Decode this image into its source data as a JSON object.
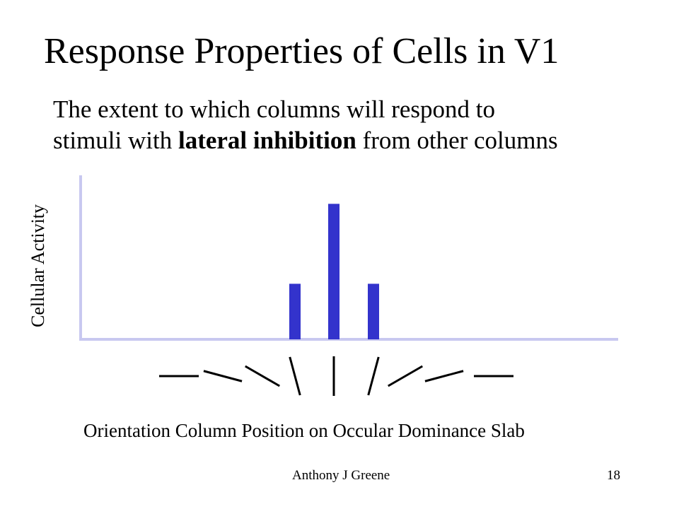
{
  "slide": {
    "title": "Response Properties of Cells in V1",
    "subtitle_pre": "The extent to which columns will respond to",
    "subtitle_line2_before": "stimuli with ",
    "subtitle_bold": "lateral inhibition",
    "subtitle_line2_after": " from other columns",
    "footer_author": "Anthony J Greene",
    "footer_page": "18"
  },
  "chart_data": {
    "type": "bar",
    "ylabel": "Cellular Activity",
    "xlabel": "Orientation Column Position on Occular Dominance Slab",
    "categories": [
      "0°",
      "15°",
      "30°",
      "75°",
      "90°",
      "105°",
      "150°",
      "165°",
      "180°"
    ],
    "orientations_deg": [
      0,
      15,
      30,
      75,
      90,
      105,
      150,
      165,
      180
    ],
    "values": [
      0,
      0,
      0,
      0.41,
      1.0,
      0.41,
      0,
      0,
      0
    ],
    "ylim": [
      0,
      1.2
    ],
    "grid": false,
    "bar_color": "#3333cc",
    "axis_color": "#c8c8f0",
    "tick_color": "#000000"
  }
}
